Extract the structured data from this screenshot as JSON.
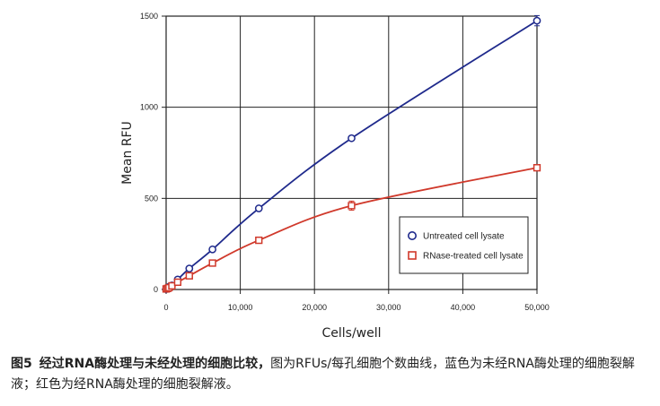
{
  "chart_data": {
    "type": "line",
    "xlabel": "Cells/well",
    "ylabel": "Mean RFU",
    "xlim": [
      0,
      50000
    ],
    "ylim": [
      0,
      1500
    ],
    "x_ticks": [
      0,
      10000,
      20000,
      30000,
      40000,
      50000
    ],
    "x_tick_labels": [
      "0",
      "10,000",
      "20,000",
      "30,000",
      "40,000",
      "50,000"
    ],
    "y_ticks": [
      0,
      500,
      1000,
      1500
    ],
    "y_tick_labels": [
      "0",
      "500",
      "1000",
      "1500"
    ],
    "grid": true,
    "legend_position": "lower-right",
    "series": [
      {
        "name": "Untreated cell lysate",
        "color": "#1f2a8c",
        "marker": "circle",
        "x": [
          0,
          195,
          390,
          780,
          1560,
          3125,
          6250,
          12500,
          25000,
          50000
        ],
        "y": [
          2,
          8,
          15,
          22,
          55,
          115,
          220,
          445,
          830,
          1475
        ],
        "error": [
          0,
          0,
          0,
          0,
          0,
          0,
          0,
          0,
          0,
          28
        ]
      },
      {
        "name": "RNase-treated cell lysate",
        "color": "#d0392b",
        "marker": "square",
        "x": [
          0,
          195,
          390,
          780,
          1560,
          3125,
          6250,
          12500,
          25000,
          50000
        ],
        "y": [
          3,
          6,
          10,
          20,
          40,
          75,
          145,
          270,
          460,
          668
        ],
        "error": [
          0,
          0,
          0,
          0,
          0,
          0,
          0,
          0,
          25,
          0
        ]
      }
    ]
  },
  "caption": {
    "figure_label": "图5",
    "bold_text": "经过RNA酶处理与未经处理的细胞比较，",
    "text": "图为RFUs/每孔细胞个数曲线，蓝色为未经RNA酶处理的细胞裂解液；红色为经RNA酶处理的细胞裂解液。"
  }
}
